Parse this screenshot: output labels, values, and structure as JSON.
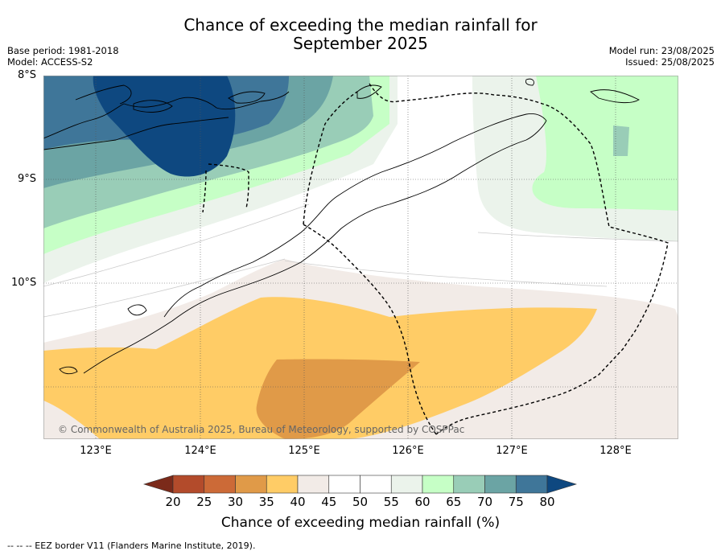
{
  "title_line1": "Chance of exceeding the median rainfall for",
  "title_line2": "September 2025",
  "meta_left": {
    "base_period": "Base period: 1981-2018",
    "model": "Model: ACCESS-S2"
  },
  "meta_right": {
    "model_run": "Model run: 23/08/2025",
    "issued": "Issued: 25/08/2025"
  },
  "lat_labels": [
    "8°S",
    "9°S",
    "10°S"
  ],
  "lon_labels": [
    "123°E",
    "124°E",
    "125°E",
    "126°E",
    "127°E",
    "128°E"
  ],
  "copyright": "© Commonwealth of Australia 2025, Bureau of Meteorology, supported by COSPPac",
  "colorbar": {
    "ticks": [
      "20",
      "25",
      "30",
      "35",
      "40",
      "45",
      "50",
      "55",
      "60",
      "65",
      "70",
      "75",
      "80"
    ],
    "colors": [
      "#7b2a1a",
      "#b34b2b",
      "#cc6a37",
      "#e09a48",
      "#ffcc66",
      "#f2ebe7",
      "#ffffff",
      "#ffffff",
      "#ebf3eb",
      "#c6ffc6",
      "#99cdb7",
      "#6ba4a4",
      "#3f7699",
      "#0e4880"
    ],
    "title": "Chance of exceeding median rainfall (%)"
  },
  "footer": "-- -- -- EEZ border V11 (Flanders Marine Institute, 2019)."
}
